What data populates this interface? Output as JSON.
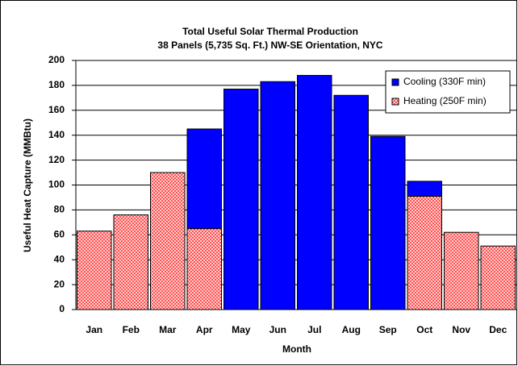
{
  "chart_data": {
    "type": "stacked_bar",
    "title": "Total Useful Solar Thermal Production",
    "subtitle": "38 Panels (5,735 Sq. Ft.) NW-SE Orientation, NYC",
    "x_label": "Month",
    "y_label": "Useful Heat Capture (MMBtu)",
    "categories": [
      "Jan",
      "Feb",
      "Mar",
      "Apr",
      "May",
      "Jun",
      "Jul",
      "Aug",
      "Sep",
      "Oct",
      "Nov",
      "Dec"
    ],
    "series": [
      {
        "name": "Cooling (330F min)",
        "color": "#0000ff",
        "values": [
          0,
          0,
          0,
          80,
          177,
          183,
          188,
          172,
          139,
          12,
          0,
          0
        ]
      },
      {
        "name": "Heating (250F min)",
        "color": "#ff5050",
        "values": [
          63,
          76,
          110,
          65,
          0,
          0,
          0,
          0,
          0,
          91,
          62,
          51
        ]
      }
    ],
    "ylim": [
      0,
      200
    ],
    "yticks": [
      0,
      20,
      40,
      60,
      80,
      100,
      120,
      140,
      160,
      180,
      200
    ],
    "grid": true,
    "legend": "upper right"
  }
}
